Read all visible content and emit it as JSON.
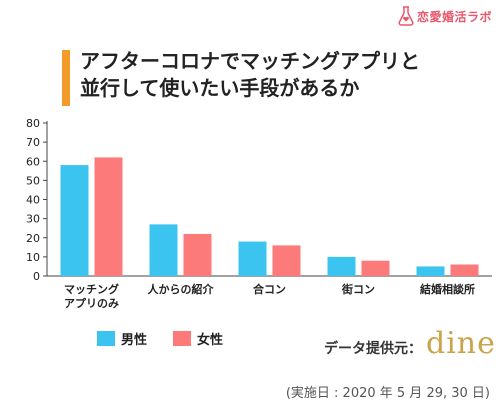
{
  "logo": {
    "text": "恋愛婚活ラボ",
    "icon": "flask-heart-icon",
    "color": "#e8566b"
  },
  "title": {
    "line1": "アフターコロナでマッチングアプリと",
    "line2": "並行して使いたい手段があるか",
    "accent": "#f39b2a"
  },
  "chart_data": {
    "type": "bar",
    "title": "アフターコロナでマッチングアプリと並行して使いたい手段があるか",
    "categories": [
      "マッチング\nアプリのみ",
      "人からの紹介",
      "合コン",
      "街コン",
      "結婚相談所"
    ],
    "series": [
      {
        "name": "男性",
        "values": [
          58,
          27,
          18,
          10,
          5
        ],
        "color": "#3cc4f0"
      },
      {
        "name": "女性",
        "values": [
          62,
          22,
          16,
          8,
          6
        ],
        "color": "#fc7a7a"
      }
    ],
    "xlabel": "",
    "ylabel": "",
    "ylim": [
      0,
      80
    ],
    "yticks": [
      0,
      10,
      20,
      30,
      40,
      50,
      60,
      70,
      80
    ],
    "grid": false,
    "legend": "bottom-left"
  },
  "legend": {
    "male": "男性",
    "female": "女性"
  },
  "provider": {
    "label": "データ提供元：",
    "brand": "dine"
  },
  "survey_date": "(実施日 : 2020 年 5 月 29, 30 日)"
}
